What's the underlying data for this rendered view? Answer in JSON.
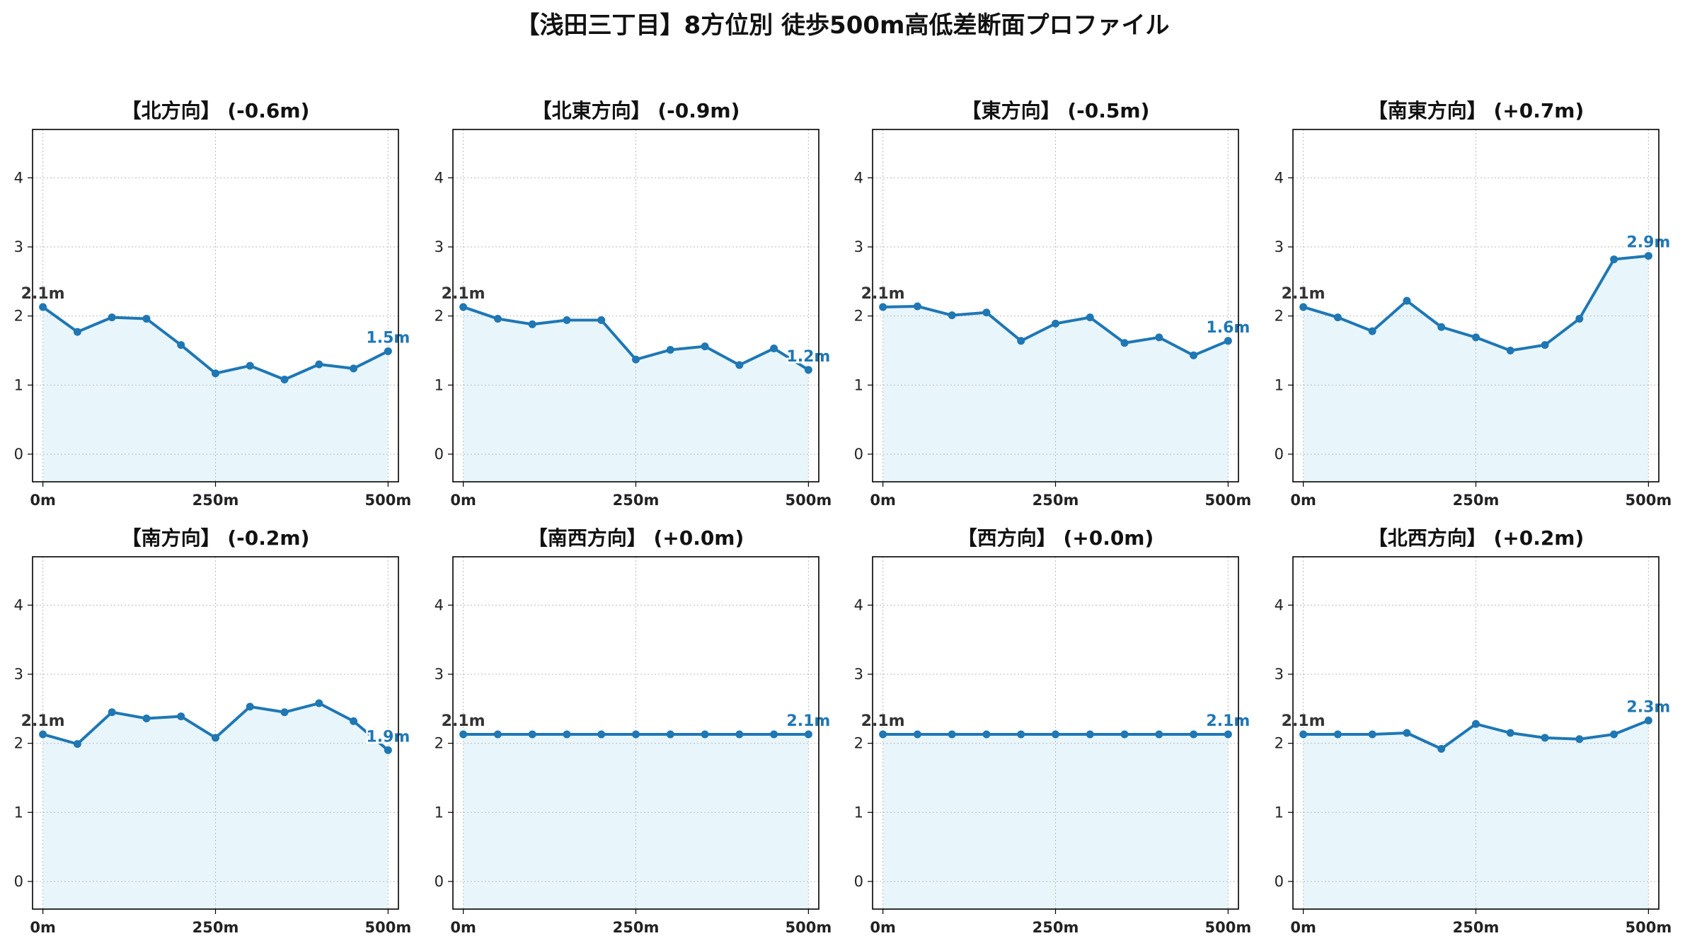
{
  "title": "【浅田三丁目】8方位別 徒歩500m高低差断面プロファイル",
  "colors": {
    "line": "#1f77b4",
    "start_label": "#333333",
    "fill": "#e8f6fc",
    "grid": "#bbbbbb",
    "axis": "#000000"
  },
  "chart_data": [
    {
      "type": "line",
      "title": "【北方向】 (-0.6m)",
      "x": [
        0,
        50,
        100,
        150,
        200,
        250,
        300,
        350,
        400,
        450,
        500
      ],
      "y": [
        2.13,
        1.77,
        1.98,
        1.96,
        1.58,
        1.17,
        1.28,
        1.08,
        1.3,
        1.24,
        1.49
      ],
      "start_label": "2.1m",
      "end_label": "1.5m",
      "xticks": [
        0,
        250,
        500
      ],
      "xtick_labels": [
        "0m",
        "250m",
        "500m"
      ],
      "yticks": [
        0,
        1,
        2,
        3,
        4
      ],
      "ytick_labels": [
        "0",
        "1",
        "2",
        "3",
        "4"
      ],
      "xlim": [
        -15,
        515
      ],
      "ylim": [
        -0.4,
        4.7
      ],
      "grid": true
    },
    {
      "type": "line",
      "title": "【北東方向】 (-0.9m)",
      "x": [
        0,
        50,
        100,
        150,
        200,
        250,
        300,
        350,
        400,
        450,
        500
      ],
      "y": [
        2.13,
        1.96,
        1.88,
        1.94,
        1.94,
        1.37,
        1.51,
        1.56,
        1.29,
        1.53,
        1.22
      ],
      "start_label": "2.1m",
      "end_label": "1.2m",
      "xticks": [
        0,
        250,
        500
      ],
      "xtick_labels": [
        "0m",
        "250m",
        "500m"
      ],
      "yticks": [
        0,
        1,
        2,
        3,
        4
      ],
      "ytick_labels": [
        "0",
        "1",
        "2",
        "3",
        "4"
      ],
      "xlim": [
        -15,
        515
      ],
      "ylim": [
        -0.4,
        4.7
      ],
      "grid": true
    },
    {
      "type": "line",
      "title": "【東方向】 (-0.5m)",
      "x": [
        0,
        50,
        100,
        150,
        200,
        250,
        300,
        350,
        400,
        450,
        500
      ],
      "y": [
        2.13,
        2.14,
        2.01,
        2.05,
        1.64,
        1.89,
        1.98,
        1.61,
        1.69,
        1.43,
        1.64
      ],
      "start_label": "2.1m",
      "end_label": "1.6m",
      "xticks": [
        0,
        250,
        500
      ],
      "xtick_labels": [
        "0m",
        "250m",
        "500m"
      ],
      "yticks": [
        0,
        1,
        2,
        3,
        4
      ],
      "ytick_labels": [
        "0",
        "1",
        "2",
        "3",
        "4"
      ],
      "xlim": [
        -15,
        515
      ],
      "ylim": [
        -0.4,
        4.7
      ],
      "grid": true
    },
    {
      "type": "line",
      "title": "【南東方向】 (+0.7m)",
      "x": [
        0,
        50,
        100,
        150,
        200,
        250,
        300,
        350,
        400,
        450,
        500
      ],
      "y": [
        2.13,
        1.98,
        1.78,
        2.22,
        1.84,
        1.69,
        1.5,
        1.58,
        1.96,
        2.82,
        2.87
      ],
      "start_label": "2.1m",
      "end_label": "2.9m",
      "xticks": [
        0,
        250,
        500
      ],
      "xtick_labels": [
        "0m",
        "250m",
        "500m"
      ],
      "yticks": [
        0,
        1,
        2,
        3,
        4
      ],
      "ytick_labels": [
        "0",
        "1",
        "2",
        "3",
        "4"
      ],
      "xlim": [
        -15,
        515
      ],
      "ylim": [
        -0.4,
        4.7
      ],
      "grid": true
    },
    {
      "type": "line",
      "title": "【南方向】 (-0.2m)",
      "x": [
        0,
        50,
        100,
        150,
        200,
        250,
        300,
        350,
        400,
        450,
        500
      ],
      "y": [
        2.13,
        1.99,
        2.45,
        2.36,
        2.39,
        2.08,
        2.53,
        2.45,
        2.58,
        2.32,
        1.9
      ],
      "start_label": "2.1m",
      "end_label": "1.9m",
      "xticks": [
        0,
        250,
        500
      ],
      "xtick_labels": [
        "0m",
        "250m",
        "500m"
      ],
      "yticks": [
        0,
        1,
        2,
        3,
        4
      ],
      "ytick_labels": [
        "0",
        "1",
        "2",
        "3",
        "4"
      ],
      "xlim": [
        -15,
        515
      ],
      "ylim": [
        -0.4,
        4.7
      ],
      "grid": true
    },
    {
      "type": "line",
      "title": "【南西方向】 (+0.0m)",
      "x": [
        0,
        50,
        100,
        150,
        200,
        250,
        300,
        350,
        400,
        450,
        500
      ],
      "y": [
        2.13,
        2.13,
        2.13,
        2.13,
        2.13,
        2.13,
        2.13,
        2.13,
        2.13,
        2.13,
        2.13
      ],
      "start_label": "2.1m",
      "end_label": "2.1m",
      "xticks": [
        0,
        250,
        500
      ],
      "xtick_labels": [
        "0m",
        "250m",
        "500m"
      ],
      "yticks": [
        0,
        1,
        2,
        3,
        4
      ],
      "ytick_labels": [
        "0",
        "1",
        "2",
        "3",
        "4"
      ],
      "xlim": [
        -15,
        515
      ],
      "ylim": [
        -0.4,
        4.7
      ],
      "grid": true
    },
    {
      "type": "line",
      "title": "【西方向】 (+0.0m)",
      "x": [
        0,
        50,
        100,
        150,
        200,
        250,
        300,
        350,
        400,
        450,
        500
      ],
      "y": [
        2.13,
        2.13,
        2.13,
        2.13,
        2.13,
        2.13,
        2.13,
        2.13,
        2.13,
        2.13,
        2.13
      ],
      "start_label": "2.1m",
      "end_label": "2.1m",
      "xticks": [
        0,
        250,
        500
      ],
      "xtick_labels": [
        "0m",
        "250m",
        "500m"
      ],
      "yticks": [
        0,
        1,
        2,
        3,
        4
      ],
      "ytick_labels": [
        "0",
        "1",
        "2",
        "3",
        "4"
      ],
      "xlim": [
        -15,
        515
      ],
      "ylim": [
        -0.4,
        4.7
      ],
      "grid": true
    },
    {
      "type": "line",
      "title": "【北西方向】 (+0.2m)",
      "x": [
        0,
        50,
        100,
        150,
        200,
        250,
        300,
        350,
        400,
        450,
        500
      ],
      "y": [
        2.13,
        2.13,
        2.13,
        2.15,
        1.92,
        2.28,
        2.15,
        2.08,
        2.06,
        2.13,
        2.33
      ],
      "start_label": "2.1m",
      "end_label": "2.3m",
      "xticks": [
        0,
        250,
        500
      ],
      "xtick_labels": [
        "0m",
        "250m",
        "500m"
      ],
      "yticks": [
        0,
        1,
        2,
        3,
        4
      ],
      "ytick_labels": [
        "0",
        "1",
        "2",
        "3",
        "4"
      ],
      "xlim": [
        -15,
        515
      ],
      "ylim": [
        -0.4,
        4.7
      ],
      "grid": true
    }
  ]
}
